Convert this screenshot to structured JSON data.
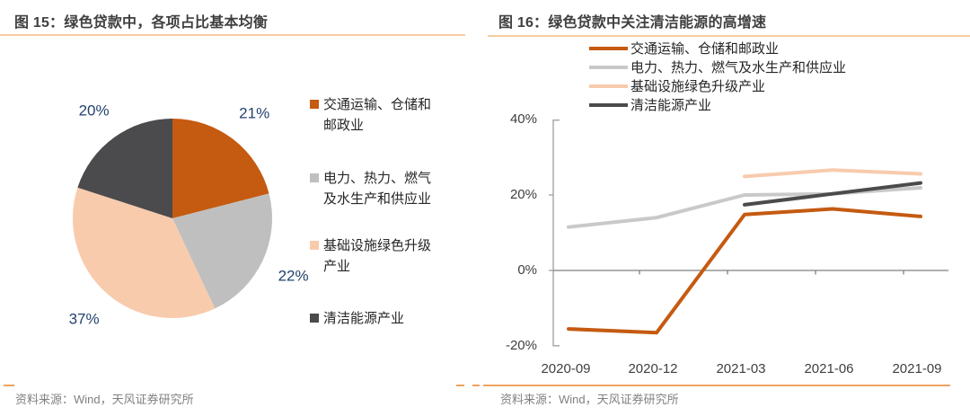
{
  "panels": {
    "left": {
      "title": "图 15：绿色贷款中，各项占比基本均衡",
      "source": "资料来源：Wind，天风证券研究所"
    },
    "right": {
      "title": "图 16：绿色贷款中关注清洁能源的高增速",
      "source": "资料来源：Wind，天风证券研究所"
    }
  },
  "colors": {
    "orange": "#C55A11",
    "gray_slice": "#BFBFBF",
    "gray_line": "#C9C9C9",
    "peach": "#F8CBAD",
    "dark_gray": "#4B4B4D",
    "pie_label_navy": "#24426E",
    "title_text": "#3F3F3F",
    "source_text": "#808080",
    "title_rule_orange": "#F7CDA3",
    "bottom_rule_orange": "#F0A25F"
  },
  "chart_data": [
    {
      "type": "pie",
      "title": "图 15：绿色贷款中，各项占比基本均衡",
      "categories": [
        "交通运输、仓储和邮政业",
        "电力、热力、燃气及水生产和供应业",
        "基础设施绿色升级产业",
        "清洁能源产业"
      ],
      "values": [
        21,
        22,
        37,
        20
      ],
      "labels": [
        "21%",
        "22%",
        "37%",
        "20%"
      ],
      "colors": [
        "#C55A11",
        "#BFBFBF",
        "#F8CBAD",
        "#4B4B4D"
      ],
      "start_angle_deg": 0,
      "direction": "clockwise",
      "legend_position": "right"
    },
    {
      "type": "line",
      "title": "图 16：绿色贷款中关注清洁能源的高增速",
      "x": [
        "2020-09",
        "2020-12",
        "2021-03",
        "2021-06",
        "2021-09"
      ],
      "series": [
        {
          "name": "交通运输、仓储和邮政业",
          "color": "#C55A11",
          "values": [
            -15.5,
            -16.5,
            14.8,
            16.3,
            14.3
          ]
        },
        {
          "name": "电力、热力、燃气及水生产和供应业",
          "color": "#C9C9C9",
          "values": [
            11.5,
            14.0,
            20.0,
            20.3,
            21.9
          ]
        },
        {
          "name": "基础设施绿色升级产业",
          "color": "#F8CBAD",
          "values": [
            null,
            null,
            24.9,
            26.6,
            25.6
          ]
        },
        {
          "name": "清洁能源产业",
          "color": "#4B4B4D",
          "values": [
            null,
            null,
            17.4,
            20.3,
            23.2
          ]
        }
      ],
      "ylim": [
        -20,
        40
      ],
      "yticks": [
        "40%",
        "20%",
        "0%",
        "-20%"
      ],
      "ytick_values": [
        40,
        20,
        0,
        -20
      ],
      "legend_position": "top",
      "grid": false
    }
  ]
}
